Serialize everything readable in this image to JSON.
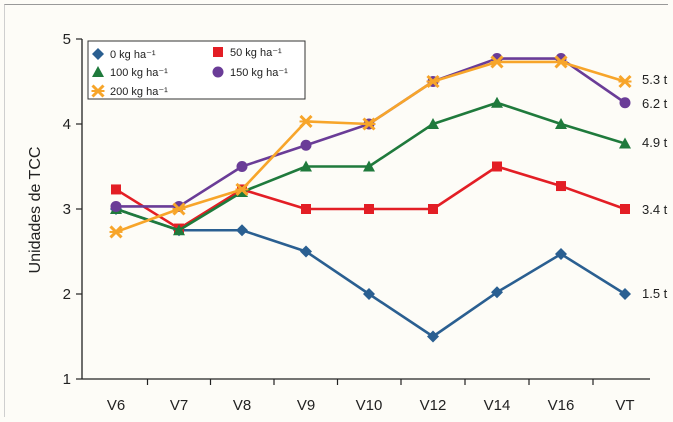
{
  "chart_data": {
    "type": "line",
    "title": "",
    "xlabel": "",
    "ylabel": "Unidades de TCC",
    "ylim": [
      1,
      5
    ],
    "yticks": [
      "1",
      "2",
      "3",
      "4",
      "5"
    ],
    "grid": false,
    "legend_position": "top-left",
    "categories": [
      "V6",
      "V7",
      "V8",
      "V9",
      "V10",
      "V12",
      "V14",
      "V16",
      "VT"
    ],
    "series": [
      {
        "name": "0 kg ha⁻¹",
        "color": "#2a5f91",
        "marker": "diamond",
        "values": [
          3.0,
          2.75,
          2.75,
          2.5,
          2.0,
          1.5,
          2.02,
          2.47,
          2.0
        ],
        "end_label": "1.5 t"
      },
      {
        "name": "50 kg ha⁻¹",
        "color": "#e31e25",
        "marker": "square",
        "values": [
          3.23,
          2.77,
          3.23,
          3.0,
          3.0,
          3.0,
          3.5,
          3.27,
          3.0
        ],
        "end_label": "3.4 t"
      },
      {
        "name": "100 kg ha⁻¹",
        "color": "#1f7a3c",
        "marker": "triangle",
        "values": [
          3.0,
          2.75,
          3.2,
          3.5,
          3.5,
          4.0,
          4.25,
          4.0,
          3.77
        ],
        "end_label": "4.9 t"
      },
      {
        "name": "150 kg ha⁻¹",
        "color": "#6a3c97",
        "marker": "circle",
        "values": [
          3.03,
          3.03,
          3.5,
          3.75,
          4.0,
          4.5,
          4.77,
          4.77,
          4.25
        ],
        "end_label": "6.2 t"
      },
      {
        "name": "200 kg ha⁻¹",
        "color": "#f7a52a",
        "marker": "star",
        "values": [
          2.73,
          3.0,
          3.23,
          4.03,
          4.0,
          4.5,
          4.73,
          4.73,
          4.5
        ],
        "end_label": "5.3 t"
      }
    ]
  }
}
